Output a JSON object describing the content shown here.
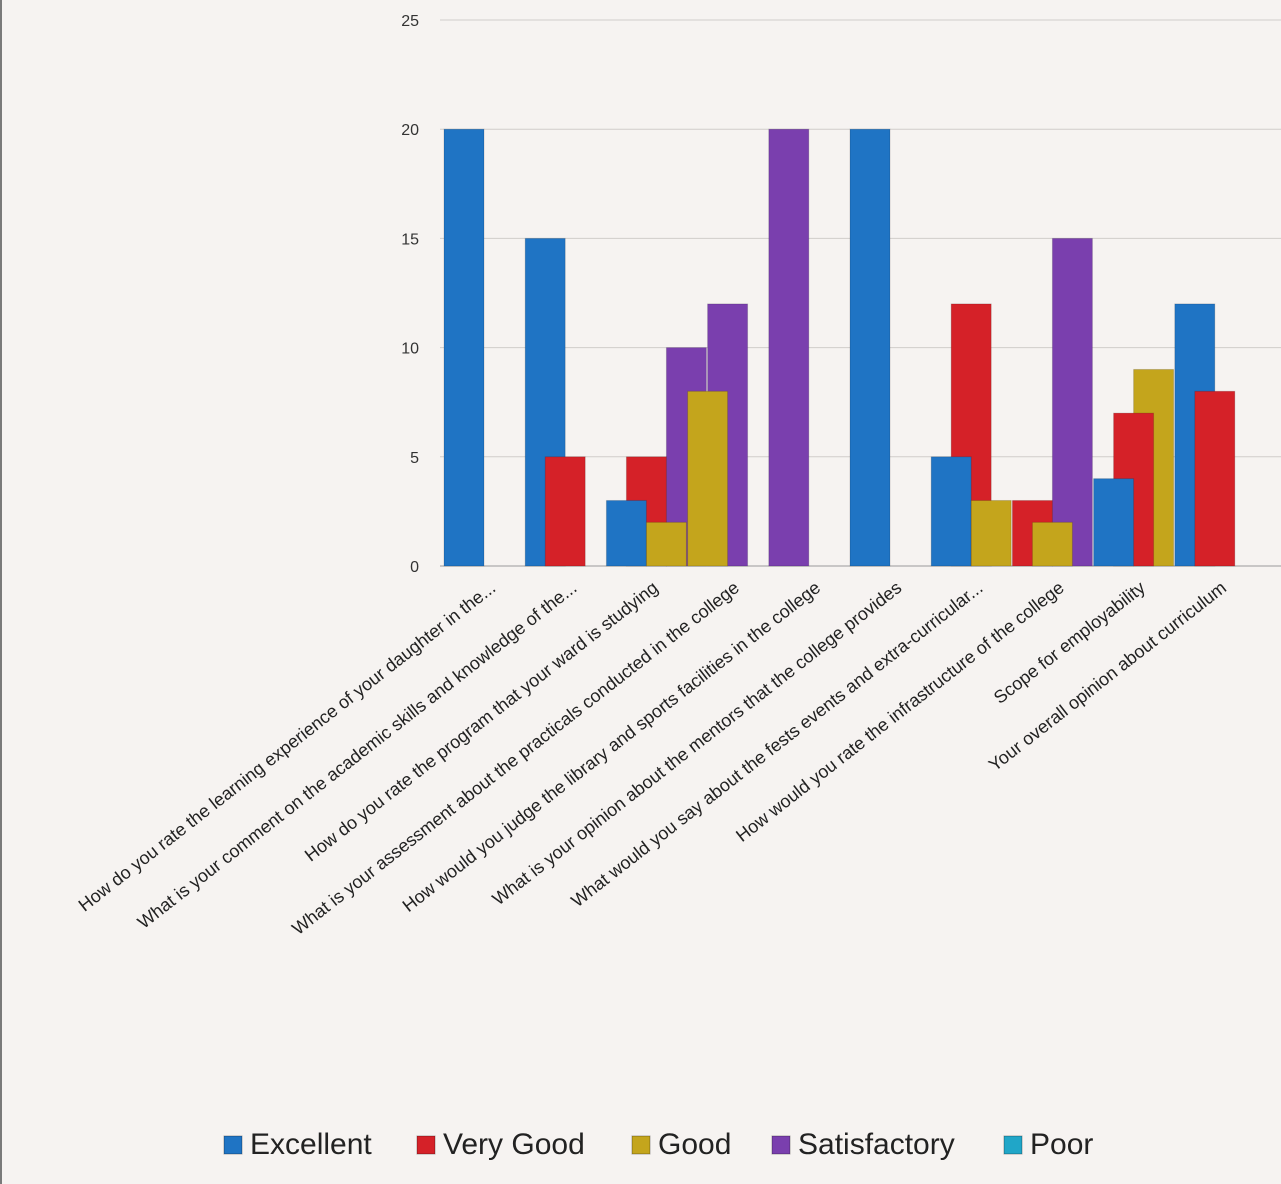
{
  "chart_data": {
    "type": "bar",
    "title": "",
    "xlabel": "",
    "ylabel": "",
    "ylim": [
      0,
      25
    ],
    "yticks": [
      0,
      5,
      10,
      15,
      20,
      25
    ],
    "grid": true,
    "legend_position": "bottom",
    "categories": [
      "How do you rate the learning experience of your daughter in the...",
      "What is your comment on the academic skills and knowledge of the...",
      "How do you rate the program that your ward is studying",
      "What is your assessment about the practicals conducted in the college",
      "How would you judge the library and sports facilities in the college",
      "What is your opinion about the mentors that the college provides",
      "What would you say about the fests events and extra-curricular...",
      "How would you rate the infrastructure of the college",
      "Scope for employability",
      "Your overall opinion about curriculum"
    ],
    "series": [
      {
        "name": "Excellent",
        "color": "#1f74c4",
        "values": [
          20,
          15,
          3,
          0,
          0,
          20,
          5,
          0,
          4,
          12
        ]
      },
      {
        "name": "Very Good",
        "color": "#d52128",
        "values": [
          0,
          5,
          5,
          0,
          0,
          0,
          12,
          3,
          7,
          8
        ]
      },
      {
        "name": "Good",
        "color": "#c4a51c",
        "values": [
          0,
          0,
          2,
          8,
          0,
          0,
          3,
          2,
          9,
          0
        ]
      },
      {
        "name": "Satisfactory",
        "color": "#7a3fae",
        "values": [
          0,
          0,
          10,
          12,
          20,
          0,
          0,
          15,
          0,
          0
        ]
      },
      {
        "name": "Poor",
        "color": "#20a6c8",
        "values": [
          0,
          0,
          0,
          0,
          0,
          0,
          0,
          0,
          0,
          0
        ]
      }
    ]
  }
}
